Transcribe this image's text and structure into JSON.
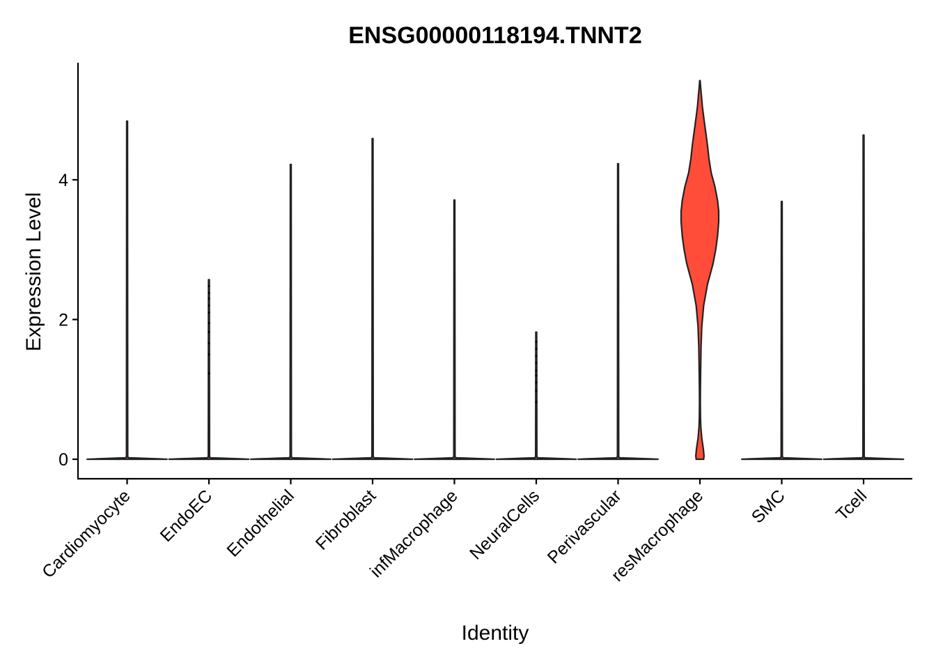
{
  "chart_data": {
    "type": "violin",
    "title": "ENSG00000118194.TNNT2",
    "xlabel": "Identity",
    "ylabel": "Expression Level",
    "ylim": [
      -0.25,
      5.65
    ],
    "yticks": [
      0,
      2,
      4
    ],
    "grid": false,
    "legend": "none",
    "fill_color": "#FF4D3A",
    "categories": [
      "Cardiomyocyte",
      "EndoEC",
      "Endothelial",
      "Fibroblast",
      "infMacrophage",
      "NeuralCells",
      "Perivascular",
      "resMacrophage",
      "SMC",
      "Tcell"
    ],
    "max_values": [
      4.84,
      2.57,
      4.22,
      4.59,
      3.71,
      1.82,
      4.23,
      5.42,
      3.69,
      4.64
    ],
    "point_values": [
      [],
      [
        1.23,
        1.5,
        1.66,
        1.82,
        1.95,
        2.1,
        2.2,
        2.3,
        2.38,
        2.48
      ],
      [],
      [],
      [],
      [
        0.82,
        0.98,
        1.1,
        1.2,
        1.27,
        1.38,
        1.48,
        1.58,
        1.68
      ],
      [],
      [],
      [],
      []
    ],
    "density_profile": {
      "category": "resMacrophage",
      "y": [
        0,
        0.05,
        0.15,
        0.3,
        0.45,
        0.6,
        0.8,
        1.0,
        1.3,
        1.6,
        1.9,
        2.2,
        2.5,
        2.8,
        3.0,
        3.2,
        3.4,
        3.55,
        3.7,
        3.9,
        4.1,
        4.3,
        4.5,
        4.7,
        4.9,
        5.05,
        5.2,
        5.32,
        5.42
      ],
      "half_width": [
        0.1,
        0.11,
        0.09,
        0.05,
        0.025,
        0.015,
        0.012,
        0.013,
        0.02,
        0.03,
        0.05,
        0.1,
        0.2,
        0.35,
        0.42,
        0.47,
        0.5,
        0.5,
        0.47,
        0.4,
        0.3,
        0.24,
        0.2,
        0.15,
        0.1,
        0.065,
        0.04,
        0.02,
        0.005
      ]
    },
    "zero_violin_half_width": 0.45
  }
}
